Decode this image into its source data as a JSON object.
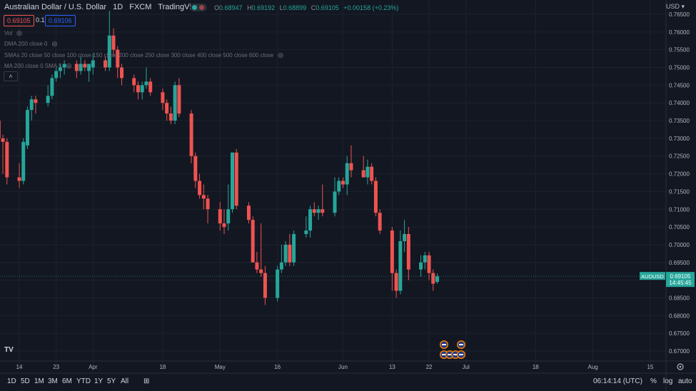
{
  "header": {
    "title": "Australian Dollar / U.S. Dollar",
    "interval": "1D",
    "source": "FXCM",
    "platform": "TradingView"
  },
  "ohlc": {
    "o_label": "O",
    "o": "0.68947",
    "h_label": "H",
    "h": "0.69192",
    "l_label": "L",
    "l": "0.68899",
    "c_label": "C",
    "c": "0.69105",
    "change": "+0.00158 (+0.23%)"
  },
  "bid_price": "0.69105",
  "spread": "0.1",
  "ask_price": "0.69106",
  "indicators": {
    "vol": "Vol",
    "dma": "DMA 200 close 0",
    "smas": "SMAs 20 close 50 close 100 close 150 close 200 close 250 close 300 close 400 close 500 close 600 close",
    "ma": "MA 200 close 0 SMA 5"
  },
  "currency": "USD",
  "symbol_label": "AUDUSD",
  "last_price": "0.69105",
  "countdown": "14:45:45",
  "time_utc": "06:14:14 (UTC)",
  "timeframes": [
    "1D",
    "5D",
    "1M",
    "3M",
    "6M",
    "YTD",
    "1Y",
    "5Y",
    "All"
  ],
  "scale_options": {
    "percent": "%",
    "log": "log",
    "auto": "auto"
  },
  "logo_text": "TV",
  "colors": {
    "up": "#26a69a",
    "down": "#ef5350",
    "background": "#131722",
    "grid": "#1e222d",
    "text": "#b2b5be"
  },
  "chart_data": {
    "type": "candlestick",
    "symbol": "AUDUSD",
    "ylim": [
      0.67,
      0.765
    ],
    "y_ticks": [
      "0.76500",
      "0.76000",
      "0.75500",
      "0.75000",
      "0.74500",
      "0.74000",
      "0.73500",
      "0.73000",
      "0.72500",
      "0.72000",
      "0.71500",
      "0.71000",
      "0.70500",
      "0.70000",
      "0.69500",
      "0.69000",
      "0.68500",
      "0.68000",
      "0.67500",
      "0.67000"
    ],
    "x_ticks": [
      {
        "label": "14",
        "date": "2022-03-14"
      },
      {
        "label": "23",
        "date": "2022-03-23"
      },
      {
        "label": "Apr",
        "date": "2022-04-01"
      },
      {
        "label": "18",
        "date": "2022-04-18"
      },
      {
        "label": "May",
        "date": "2022-05-02"
      },
      {
        "label": "16",
        "date": "2022-05-16"
      },
      {
        "label": "Jun",
        "date": "2022-06-01"
      },
      {
        "label": "13",
        "date": "2022-06-13"
      },
      {
        "label": "22",
        "date": "2022-06-22"
      },
      {
        "label": "Jul",
        "date": "2022-07-01"
      },
      {
        "label": "18",
        "date": "2022-07-18"
      },
      {
        "label": "Aug",
        "date": "2022-08-01"
      },
      {
        "label": "15",
        "date": "2022-08-15"
      }
    ],
    "candles": [
      {
        "date": "2022-03-07",
        "o": 0.732,
        "h": 0.738,
        "l": 0.725,
        "c": 0.727
      },
      {
        "date": "2022-03-08",
        "o": 0.729,
        "h": 0.737,
        "l": 0.725,
        "c": 0.735
      },
      {
        "date": "2022-03-09",
        "o": 0.735,
        "h": 0.737,
        "l": 0.727,
        "c": 0.73
      },
      {
        "date": "2022-03-10",
        "o": 0.73,
        "h": 0.731,
        "l": 0.72,
        "c": 0.729
      },
      {
        "date": "2022-03-11",
        "o": 0.729,
        "h": 0.73,
        "l": 0.717,
        "c": 0.719
      },
      {
        "date": "2022-03-14",
        "o": 0.719,
        "h": 0.723,
        "l": 0.716,
        "c": 0.718
      },
      {
        "date": "2022-03-15",
        "o": 0.718,
        "h": 0.73,
        "l": 0.717,
        "c": 0.729
      },
      {
        "date": "2022-03-16",
        "o": 0.728,
        "h": 0.739,
        "l": 0.727,
        "c": 0.738
      },
      {
        "date": "2022-03-17",
        "o": 0.738,
        "h": 0.742,
        "l": 0.735,
        "c": 0.741
      },
      {
        "date": "2022-03-18",
        "o": 0.741,
        "h": 0.742,
        "l": 0.737,
        "c": 0.74
      },
      {
        "date": "2022-03-21",
        "o": 0.74,
        "h": 0.745,
        "l": 0.739,
        "c": 0.742
      },
      {
        "date": "2022-03-22",
        "o": 0.742,
        "h": 0.748,
        "l": 0.741,
        "c": 0.747
      },
      {
        "date": "2022-03-23",
        "o": 0.747,
        "h": 0.75,
        "l": 0.746,
        "c": 0.749
      },
      {
        "date": "2022-03-24",
        "o": 0.749,
        "h": 0.751,
        "l": 0.747,
        "c": 0.75
      },
      {
        "date": "2022-03-25",
        "o": 0.75,
        "h": 0.752,
        "l": 0.748,
        "c": 0.751
      },
      {
        "date": "2022-03-28",
        "o": 0.751,
        "h": 0.752,
        "l": 0.747,
        "c": 0.749
      },
      {
        "date": "2022-03-29",
        "o": 0.749,
        "h": 0.753,
        "l": 0.748,
        "c": 0.751
      },
      {
        "date": "2022-03-30",
        "o": 0.751,
        "h": 0.752,
        "l": 0.749,
        "c": 0.75
      },
      {
        "date": "2022-03-31",
        "o": 0.749,
        "h": 0.751,
        "l": 0.746,
        "c": 0.751
      },
      {
        "date": "2022-04-01",
        "o": 0.75,
        "h": 0.754,
        "l": 0.748,
        "c": 0.752
      },
      {
        "date": "2022-04-04",
        "o": 0.752,
        "h": 0.753,
        "l": 0.749,
        "c": 0.75
      },
      {
        "date": "2022-04-05",
        "o": 0.75,
        "h": 0.766,
        "l": 0.749,
        "c": 0.759
      },
      {
        "date": "2022-04-06",
        "o": 0.759,
        "h": 0.761,
        "l": 0.753,
        "c": 0.755
      },
      {
        "date": "2022-04-07",
        "o": 0.755,
        "h": 0.756,
        "l": 0.747,
        "c": 0.75
      },
      {
        "date": "2022-04-08",
        "o": 0.75,
        "h": 0.751,
        "l": 0.745,
        "c": 0.747
      },
      {
        "date": "2022-04-11",
        "o": 0.747,
        "h": 0.748,
        "l": 0.743,
        "c": 0.745
      },
      {
        "date": "2022-04-12",
        "o": 0.745,
        "h": 0.746,
        "l": 0.741,
        "c": 0.743
      },
      {
        "date": "2022-04-13",
        "o": 0.743,
        "h": 0.746,
        "l": 0.741,
        "c": 0.745
      },
      {
        "date": "2022-04-14",
        "o": 0.745,
        "h": 0.75,
        "l": 0.744,
        "c": 0.746
      },
      {
        "date": "2022-04-15",
        "o": 0.746,
        "h": 0.747,
        "l": 0.742,
        "c": 0.743
      },
      {
        "date": "2022-04-18",
        "o": 0.743,
        "h": 0.744,
        "l": 0.738,
        "c": 0.74
      },
      {
        "date": "2022-04-19",
        "o": 0.74,
        "h": 0.741,
        "l": 0.735,
        "c": 0.737
      },
      {
        "date": "2022-04-20",
        "o": 0.737,
        "h": 0.739,
        "l": 0.734,
        "c": 0.735
      },
      {
        "date": "2022-04-21",
        "o": 0.735,
        "h": 0.746,
        "l": 0.734,
        "c": 0.745
      },
      {
        "date": "2022-04-22",
        "o": 0.745,
        "h": 0.747,
        "l": 0.736,
        "c": 0.737
      },
      {
        "date": "2022-04-25",
        "o": 0.737,
        "h": 0.738,
        "l": 0.723,
        "c": 0.725
      },
      {
        "date": "2022-04-26",
        "o": 0.725,
        "h": 0.726,
        "l": 0.716,
        "c": 0.718
      },
      {
        "date": "2022-04-27",
        "o": 0.718,
        "h": 0.72,
        "l": 0.713,
        "c": 0.714
      },
      {
        "date": "2022-04-28",
        "o": 0.714,
        "h": 0.717,
        "l": 0.71,
        "c": 0.713
      },
      {
        "date": "2022-04-29",
        "o": 0.713,
        "h": 0.714,
        "l": 0.706,
        "c": 0.71
      },
      {
        "date": "2022-05-02",
        "o": 0.71,
        "h": 0.712,
        "l": 0.704,
        "c": 0.706
      },
      {
        "date": "2022-05-03",
        "o": 0.706,
        "h": 0.71,
        "l": 0.703,
        "c": 0.705
      },
      {
        "date": "2022-05-04",
        "o": 0.706,
        "h": 0.717,
        "l": 0.704,
        "c": 0.71
      },
      {
        "date": "2022-05-05",
        "o": 0.71,
        "h": 0.726,
        "l": 0.709,
        "c": 0.726
      },
      {
        "date": "2022-05-06",
        "o": 0.726,
        "h": 0.727,
        "l": 0.71,
        "c": 0.711
      },
      {
        "date": "2022-05-09",
        "o": 0.711,
        "h": 0.712,
        "l": 0.706,
        "c": 0.707
      },
      {
        "date": "2022-05-10",
        "o": 0.707,
        "h": 0.708,
        "l": 0.695,
        "c": 0.695
      },
      {
        "date": "2022-05-11",
        "o": 0.695,
        "h": 0.698,
        "l": 0.692,
        "c": 0.693
      },
      {
        "date": "2022-05-12",
        "o": 0.693,
        "h": 0.706,
        "l": 0.691,
        "c": 0.692
      },
      {
        "date": "2022-05-13",
        "o": 0.692,
        "h": 0.694,
        "l": 0.683,
        "c": 0.685
      },
      {
        "date": "2022-05-16",
        "o": 0.685,
        "h": 0.694,
        "l": 0.684,
        "c": 0.693
      },
      {
        "date": "2022-05-17",
        "o": 0.693,
        "h": 0.7,
        "l": 0.692,
        "c": 0.695
      },
      {
        "date": "2022-05-18",
        "o": 0.695,
        "h": 0.701,
        "l": 0.694,
        "c": 0.7
      },
      {
        "date": "2022-05-19",
        "o": 0.7,
        "h": 0.703,
        "l": 0.694,
        "c": 0.695
      },
      {
        "date": "2022-05-20",
        "o": 0.695,
        "h": 0.704,
        "l": 0.694,
        "c": 0.703
      },
      {
        "date": "2022-05-23",
        "o": 0.703,
        "h": 0.708,
        "l": 0.702,
        "c": 0.704
      },
      {
        "date": "2022-05-24",
        "o": 0.704,
        "h": 0.711,
        "l": 0.702,
        "c": 0.71
      },
      {
        "date": "2022-05-25",
        "o": 0.71,
        "h": 0.712,
        "l": 0.708,
        "c": 0.709
      },
      {
        "date": "2022-05-26",
        "o": 0.709,
        "h": 0.711,
        "l": 0.707,
        "c": 0.71
      },
      {
        "date": "2022-05-27",
        "o": 0.71,
        "h": 0.717,
        "l": 0.708,
        "c": 0.709
      },
      {
        "date": "2022-05-30",
        "o": 0.709,
        "h": 0.719,
        "l": 0.708,
        "c": 0.715
      },
      {
        "date": "2022-05-31",
        "o": 0.715,
        "h": 0.719,
        "l": 0.714,
        "c": 0.718
      },
      {
        "date": "2022-06-01",
        "o": 0.718,
        "h": 0.719,
        "l": 0.716,
        "c": 0.717
      },
      {
        "date": "2022-06-02",
        "o": 0.717,
        "h": 0.725,
        "l": 0.714,
        "c": 0.723
      },
      {
        "date": "2022-06-03",
        "o": 0.723,
        "h": 0.728,
        "l": 0.719,
        "c": 0.721
      },
      {
        "date": "2022-06-06",
        "o": 0.721,
        "h": 0.725,
        "l": 0.719,
        "c": 0.719
      },
      {
        "date": "2022-06-07",
        "o": 0.719,
        "h": 0.724,
        "l": 0.717,
        "c": 0.722
      },
      {
        "date": "2022-06-08",
        "o": 0.722,
        "h": 0.723,
        "l": 0.717,
        "c": 0.718
      },
      {
        "date": "2022-06-09",
        "o": 0.718,
        "h": 0.719,
        "l": 0.708,
        "c": 0.709
      },
      {
        "date": "2022-06-10",
        "o": 0.709,
        "h": 0.71,
        "l": 0.703,
        "c": 0.704
      },
      {
        "date": "2022-06-13",
        "o": 0.704,
        "h": 0.705,
        "l": 0.687,
        "c": 0.692
      },
      {
        "date": "2022-06-14",
        "o": 0.692,
        "h": 0.693,
        "l": 0.685,
        "c": 0.687
      },
      {
        "date": "2022-06-15",
        "o": 0.687,
        "h": 0.704,
        "l": 0.686,
        "c": 0.701
      },
      {
        "date": "2022-06-16",
        "o": 0.701,
        "h": 0.707,
        "l": 0.698,
        "c": 0.703
      },
      {
        "date": "2022-06-17",
        "o": 0.703,
        "h": 0.705,
        "l": 0.69,
        "c": 0.693
      },
      {
        "date": "2022-06-20",
        "o": 0.693,
        "h": 0.697,
        "l": 0.691,
        "c": 0.695
      },
      {
        "date": "2022-06-21",
        "o": 0.695,
        "h": 0.698,
        "l": 0.693,
        "c": 0.697
      },
      {
        "date": "2022-06-22",
        "o": 0.697,
        "h": 0.698,
        "l": 0.69,
        "c": 0.692
      },
      {
        "date": "2022-06-23",
        "o": 0.692,
        "h": 0.693,
        "l": 0.687,
        "c": 0.689
      },
      {
        "date": "2022-06-24",
        "o": 0.6895,
        "h": 0.6919,
        "l": 0.689,
        "c": 0.6911
      }
    ]
  }
}
